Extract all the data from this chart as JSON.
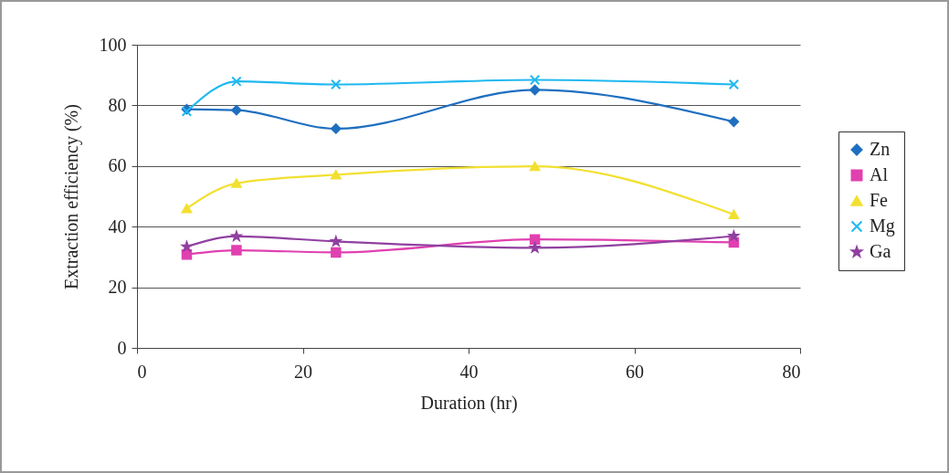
{
  "chart_data": {
    "type": "line",
    "xlabel": "Duration (hr)",
    "ylabel": "Extraction efficiency (%)",
    "x": [
      6,
      12,
      24,
      48,
      72
    ],
    "series": [
      {
        "name": "Zn",
        "color": "#1f6fc0",
        "marker": "diamond",
        "values": [
          78.7,
          78.4,
          72.3,
          85.1,
          74.6
        ]
      },
      {
        "name": "Al",
        "color": "#e040b0",
        "marker": "square",
        "values": [
          30.8,
          32.2,
          31.5,
          35.8,
          34.8
        ]
      },
      {
        "name": "Fe",
        "color": "#f2e030",
        "marker": "triangle",
        "values": [
          46,
          54.3,
          57.1,
          59.9,
          44
        ]
      },
      {
        "name": "Mg",
        "color": "#20b8f0",
        "marker": "cross",
        "values": [
          78,
          87.9,
          86.9,
          88.4,
          86.9
        ]
      },
      {
        "name": "Ga",
        "color": "#9040a0",
        "marker": "star",
        "values": [
          33.4,
          36.8,
          35.1,
          33,
          36.9
        ]
      }
    ],
    "xlim": [
      0,
      80
    ],
    "xticks": [
      0,
      20,
      40,
      60,
      80
    ],
    "ylim": [
      0,
      100
    ],
    "yticks": [
      0,
      20,
      40,
      60,
      80,
      100
    ],
    "grid": "y",
    "legend": "right"
  }
}
